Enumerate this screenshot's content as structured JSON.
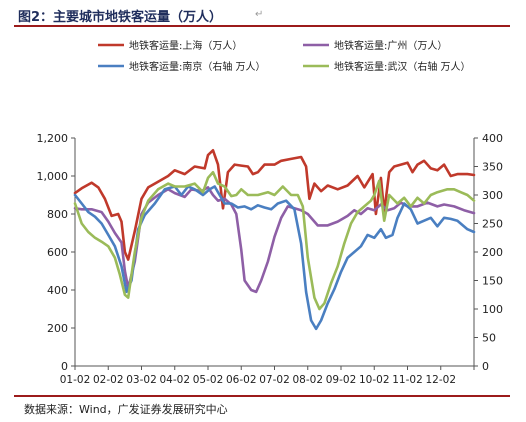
{
  "figure": {
    "title": "图2：主要城市地铁客运量（万人）",
    "source": "数据来源：Wind，广发证券发展研究中心",
    "para_mark": "↵"
  },
  "chart_data": {
    "type": "line",
    "title": "",
    "x": [
      "01-02",
      "02-02",
      "03-02",
      "04-02",
      "05-02",
      "06-02",
      "07-02",
      "08-02",
      "09-02",
      "10-02",
      "11-02",
      "12-02"
    ],
    "ylim_left": [
      0,
      1200
    ],
    "yticks_left": [
      "0",
      "200",
      "400",
      "600",
      "800",
      "1,000",
      "1,200"
    ],
    "ylim_right": [
      0,
      400
    ],
    "yticks_right": [
      "0",
      "50",
      "100",
      "150",
      "200",
      "250",
      "300",
      "350",
      "400"
    ],
    "grid": false,
    "legend_position": "top",
    "series": [
      {
        "name": "地铁客运量:上海（万人）",
        "axis": "left",
        "color": "#c0392b",
        "values": [
          [
            1,
            910
          ],
          [
            1.2,
            935
          ],
          [
            1.5,
            965
          ],
          [
            1.7,
            940
          ],
          [
            1.9,
            880
          ],
          [
            2.1,
            790
          ],
          [
            2.3,
            800
          ],
          [
            2.4,
            760
          ],
          [
            2.5,
            600
          ],
          [
            2.6,
            560
          ],
          [
            2.8,
            710
          ],
          [
            3,
            880
          ],
          [
            3.2,
            940
          ],
          [
            3.5,
            970
          ],
          [
            3.8,
            1000
          ],
          [
            4,
            1030
          ],
          [
            4.3,
            1010
          ],
          [
            4.6,
            1050
          ],
          [
            4.9,
            1040
          ],
          [
            5,
            1110
          ],
          [
            5.15,
            1135
          ],
          [
            5.3,
            1060
          ],
          [
            5.45,
            830
          ],
          [
            5.6,
            1020
          ],
          [
            5.8,
            1060
          ],
          [
            6,
            1055
          ],
          [
            6.2,
            1050
          ],
          [
            6.35,
            1010
          ],
          [
            6.5,
            1020
          ],
          [
            6.7,
            1060
          ],
          [
            7,
            1060
          ],
          [
            7.2,
            1080
          ],
          [
            7.5,
            1090
          ],
          [
            7.8,
            1100
          ],
          [
            7.95,
            1050
          ],
          [
            8.05,
            880
          ],
          [
            8.2,
            960
          ],
          [
            8.4,
            920
          ],
          [
            8.6,
            950
          ],
          [
            8.9,
            930
          ],
          [
            9.2,
            950
          ],
          [
            9.5,
            1000
          ],
          [
            9.7,
            940
          ],
          [
            9.95,
            1010
          ],
          [
            10.05,
            800
          ],
          [
            10.2,
            990
          ],
          [
            10.3,
            810
          ],
          [
            10.45,
            1020
          ],
          [
            10.6,
            1050
          ],
          [
            10.8,
            1060
          ],
          [
            11.0,
            1070
          ],
          [
            11.15,
            1020
          ],
          [
            11.3,
            1060
          ],
          [
            11.5,
            1080
          ],
          [
            11.7,
            1040
          ],
          [
            11.9,
            1030
          ],
          [
            12.1,
            1060
          ],
          [
            12.3,
            1000
          ],
          [
            12.5,
            1010
          ],
          [
            12.8,
            1010
          ],
          [
            13,
            1005
          ]
        ]
      },
      {
        "name": "地铁客运量:广州（万人）",
        "axis": "left",
        "color": "#8e5fa6",
        "values": [
          [
            1,
            830
          ],
          [
            1.2,
            825
          ],
          [
            1.5,
            825
          ],
          [
            1.8,
            810
          ],
          [
            2.0,
            760
          ],
          [
            2.2,
            700
          ],
          [
            2.4,
            650
          ],
          [
            2.5,
            500
          ],
          [
            2.6,
            410
          ],
          [
            2.8,
            550
          ],
          [
            3,
            800
          ],
          [
            3.2,
            860
          ],
          [
            3.5,
            900
          ],
          [
            3.8,
            930
          ],
          [
            4,
            910
          ],
          [
            4.3,
            890
          ],
          [
            4.5,
            930
          ],
          [
            4.8,
            920
          ],
          [
            5.0,
            940
          ],
          [
            5.15,
            900
          ],
          [
            5.3,
            870
          ],
          [
            5.5,
            880
          ],
          [
            5.7,
            850
          ],
          [
            5.85,
            800
          ],
          [
            6,
            610
          ],
          [
            6.1,
            450
          ],
          [
            6.3,
            400
          ],
          [
            6.45,
            390
          ],
          [
            6.6,
            450
          ],
          [
            6.8,
            550
          ],
          [
            7.0,
            680
          ],
          [
            7.2,
            780
          ],
          [
            7.4,
            840
          ],
          [
            7.6,
            830
          ],
          [
            7.8,
            820
          ],
          [
            8.0,
            800
          ],
          [
            8.3,
            740
          ],
          [
            8.6,
            740
          ],
          [
            8.9,
            760
          ],
          [
            9.2,
            790
          ],
          [
            9.4,
            820
          ],
          [
            9.6,
            800
          ],
          [
            9.8,
            830
          ],
          [
            10.0,
            820
          ],
          [
            10.2,
            850
          ],
          [
            10.4,
            820
          ],
          [
            10.6,
            830
          ],
          [
            10.8,
            860
          ],
          [
            11.0,
            840
          ],
          [
            11.3,
            840
          ],
          [
            11.6,
            860
          ],
          [
            11.9,
            840
          ],
          [
            12.1,
            850
          ],
          [
            12.4,
            840
          ],
          [
            12.7,
            820
          ],
          [
            13,
            805
          ]
        ]
      },
      {
        "name": "地铁客运量:南京（右轴 万人）",
        "axis": "right",
        "color": "#4a7fc1",
        "values": [
          [
            1,
            300
          ],
          [
            1.2,
            285
          ],
          [
            1.4,
            270
          ],
          [
            1.6,
            262
          ],
          [
            1.8,
            250
          ],
          [
            2.0,
            230
          ],
          [
            2.2,
            210
          ],
          [
            2.4,
            175
          ],
          [
            2.55,
            130
          ],
          [
            2.7,
            150
          ],
          [
            2.9,
            240
          ],
          [
            3.1,
            265
          ],
          [
            3.4,
            285
          ],
          [
            3.7,
            310
          ],
          [
            4.0,
            315
          ],
          [
            4.2,
            300
          ],
          [
            4.4,
            315
          ],
          [
            4.6,
            310
          ],
          [
            4.85,
            300
          ],
          [
            5.05,
            310
          ],
          [
            5.2,
            315
          ],
          [
            5.35,
            300
          ],
          [
            5.5,
            285
          ],
          [
            5.7,
            285
          ],
          [
            5.9,
            278
          ],
          [
            6.1,
            280
          ],
          [
            6.3,
            275
          ],
          [
            6.5,
            282
          ],
          [
            6.7,
            278
          ],
          [
            6.9,
            275
          ],
          [
            7.1,
            285
          ],
          [
            7.35,
            290
          ],
          [
            7.6,
            275
          ],
          [
            7.8,
            215
          ],
          [
            7.95,
            130
          ],
          [
            8.1,
            80
          ],
          [
            8.25,
            65
          ],
          [
            8.4,
            80
          ],
          [
            8.6,
            110
          ],
          [
            8.8,
            135
          ],
          [
            9.0,
            165
          ],
          [
            9.2,
            190
          ],
          [
            9.4,
            200
          ],
          [
            9.6,
            210
          ],
          [
            9.8,
            230
          ],
          [
            10.0,
            225
          ],
          [
            10.2,
            240
          ],
          [
            10.35,
            225
          ],
          [
            10.55,
            230
          ],
          [
            10.7,
            260
          ],
          [
            10.9,
            285
          ],
          [
            11.1,
            275
          ],
          [
            11.3,
            250
          ],
          [
            11.5,
            255
          ],
          [
            11.7,
            260
          ],
          [
            11.9,
            245
          ],
          [
            12.1,
            260
          ],
          [
            12.3,
            258
          ],
          [
            12.5,
            255
          ],
          [
            12.8,
            240
          ],
          [
            13,
            235
          ]
        ]
      },
      {
        "name": "地铁客运量:武汉（右轴 万人）",
        "axis": "right",
        "color": "#9bbb59",
        "values": [
          [
            1,
            285
          ],
          [
            1.2,
            250
          ],
          [
            1.4,
            235
          ],
          [
            1.6,
            225
          ],
          [
            1.8,
            218
          ],
          [
            2.0,
            210
          ],
          [
            2.2,
            190
          ],
          [
            2.35,
            160
          ],
          [
            2.5,
            125
          ],
          [
            2.6,
            120
          ],
          [
            2.8,
            200
          ],
          [
            3.0,
            260
          ],
          [
            3.2,
            290
          ],
          [
            3.5,
            310
          ],
          [
            3.8,
            320
          ],
          [
            4.0,
            315
          ],
          [
            4.3,
            315
          ],
          [
            4.6,
            320
          ],
          [
            4.85,
            305
          ],
          [
            5.0,
            330
          ],
          [
            5.15,
            340
          ],
          [
            5.3,
            320
          ],
          [
            5.5,
            315
          ],
          [
            5.7,
            298
          ],
          [
            5.85,
            300
          ],
          [
            6.0,
            310
          ],
          [
            6.2,
            300
          ],
          [
            6.5,
            300
          ],
          [
            6.8,
            305
          ],
          [
            7.0,
            300
          ],
          [
            7.25,
            315
          ],
          [
            7.5,
            300
          ],
          [
            7.7,
            300
          ],
          [
            7.85,
            280
          ],
          [
            8.0,
            190
          ],
          [
            8.2,
            120
          ],
          [
            8.35,
            100
          ],
          [
            8.5,
            110
          ],
          [
            8.7,
            145
          ],
          [
            8.9,
            175
          ],
          [
            9.1,
            215
          ],
          [
            9.3,
            250
          ],
          [
            9.5,
            270
          ],
          [
            9.7,
            280
          ],
          [
            9.9,
            290
          ],
          [
            10.0,
            300
          ],
          [
            10.15,
            325
          ],
          [
            10.3,
            255
          ],
          [
            10.45,
            300
          ],
          [
            10.7,
            285
          ],
          [
            10.9,
            295
          ],
          [
            11.1,
            280
          ],
          [
            11.3,
            295
          ],
          [
            11.5,
            285
          ],
          [
            11.7,
            300
          ],
          [
            11.9,
            305
          ],
          [
            12.2,
            310
          ],
          [
            12.4,
            310
          ],
          [
            12.6,
            305
          ],
          [
            12.8,
            300
          ],
          [
            13,
            290
          ]
        ]
      }
    ]
  }
}
